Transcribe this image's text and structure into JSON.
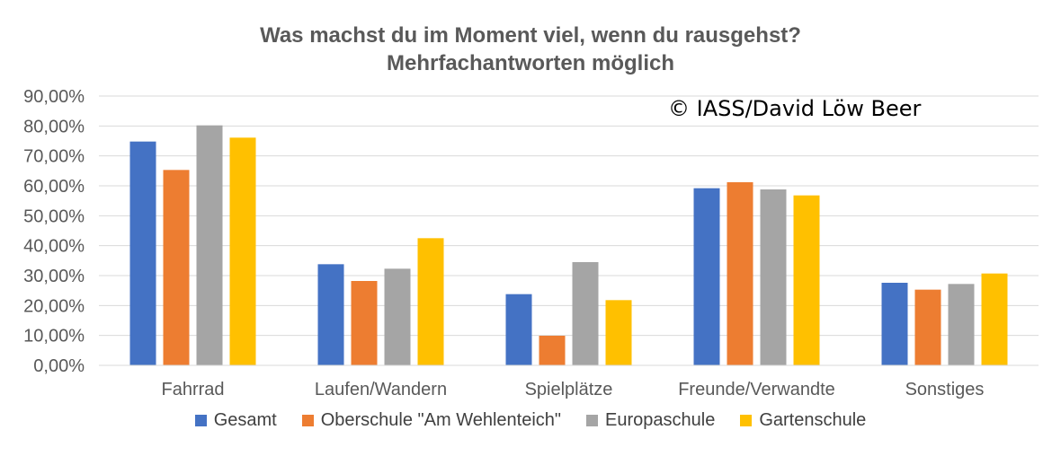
{
  "chart_data": {
    "type": "bar",
    "title": "Was machst du im Moment viel, wenn du rausgehst?",
    "subtitle": "Mehrfachantworten möglich",
    "annotation": "© IASS/David Löw Beer",
    "categories": [
      "Fahrrad",
      "Laufen/Wandern",
      "Spielplätze",
      "Freunde/Verwandte",
      "Sonstiges"
    ],
    "series": [
      {
        "name": "Gesamt",
        "color": "#4472C4",
        "values": [
          74.8,
          33.8,
          23.8,
          59.2,
          27.6
        ]
      },
      {
        "name": "Oberschule \"Am Wehlenteich\"",
        "color": "#ED7D31",
        "values": [
          65.3,
          28.2,
          9.9,
          61.2,
          25.3
        ]
      },
      {
        "name": "Europaschule",
        "color": "#A5A5A5",
        "values": [
          80.2,
          32.3,
          34.5,
          58.8,
          27.2
        ]
      },
      {
        "name": "Gartenschule",
        "color": "#FFC000",
        "values": [
          76.1,
          42.5,
          21.8,
          56.8,
          30.7
        ]
      }
    ],
    "ylim": [
      0,
      90
    ],
    "yticks": [
      "0,00%",
      "10,00%",
      "20,00%",
      "30,00%",
      "40,00%",
      "50,00%",
      "60,00%",
      "70,00%",
      "80,00%",
      "90,00%"
    ],
    "xlabel": "",
    "ylabel": "",
    "grid": true,
    "legend": "bottom"
  }
}
